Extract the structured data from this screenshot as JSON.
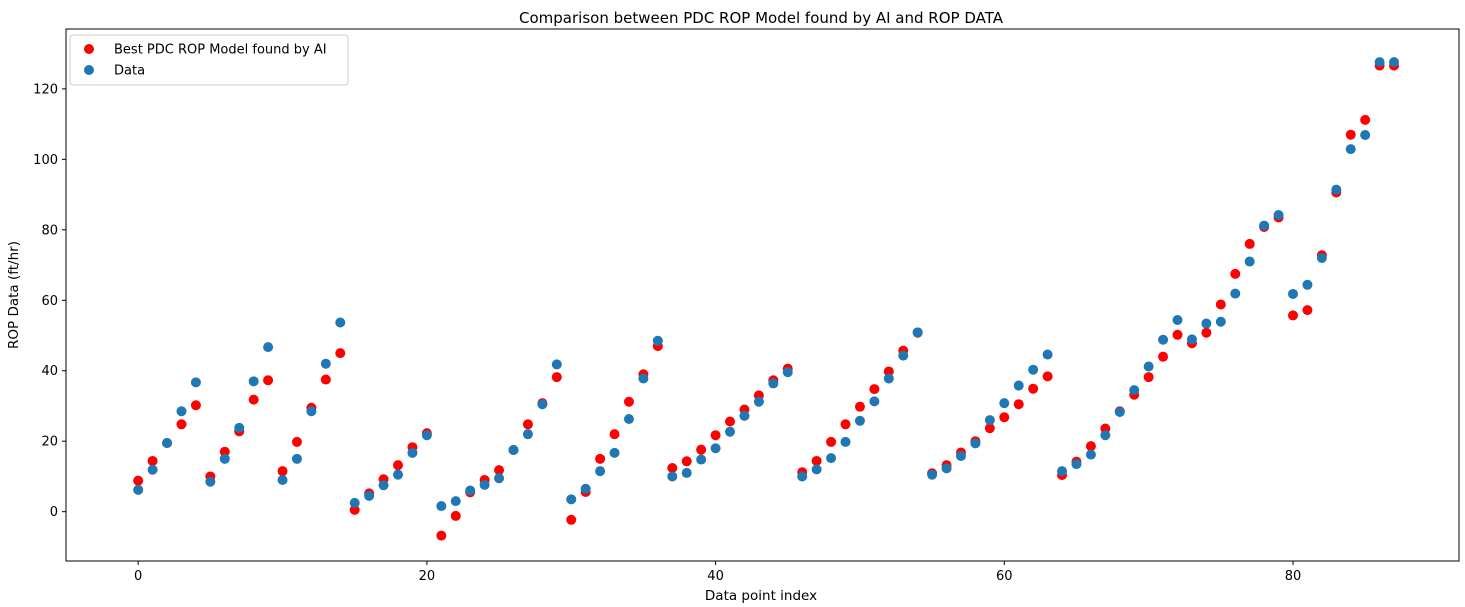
{
  "chart_data": {
    "type": "scatter",
    "title": "Comparison between PDC ROP Model found by AI and ROP DATA",
    "xlabel": "Data point index",
    "ylabel": "ROP Data (ft/hr)",
    "xlim": [
      -5,
      91.5
    ],
    "ylim": [
      -14,
      137
    ],
    "xticks": [
      0,
      20,
      40,
      60,
      80
    ],
    "yticks": [
      0,
      20,
      40,
      60,
      80,
      100,
      120
    ],
    "grid": false,
    "legend_position": "top-left",
    "series": [
      {
        "name": "Best PDC ROP Model found by AI",
        "color": "#ff0000",
        "x": [
          0,
          1,
          2,
          3,
          4,
          5,
          6,
          7,
          8,
          9,
          10,
          11,
          12,
          13,
          14,
          15,
          16,
          17,
          18,
          19,
          20,
          21,
          22,
          23,
          24,
          25,
          26,
          27,
          28,
          29,
          30,
          31,
          32,
          33,
          34,
          35,
          36,
          37,
          38,
          39,
          40,
          41,
          42,
          43,
          44,
          45,
          46,
          47,
          48,
          49,
          50,
          51,
          52,
          53,
          54,
          55,
          56,
          57,
          58,
          59,
          60,
          61,
          62,
          63,
          64,
          65,
          66,
          67,
          68,
          69,
          70,
          71,
          72,
          73,
          74,
          75,
          76,
          77,
          78,
          79,
          80,
          81,
          82,
          83,
          84,
          85,
          86,
          87
        ],
        "y": [
          8.8,
          14.4,
          19.5,
          24.8,
          30.2,
          10.0,
          17.0,
          22.8,
          31.8,
          37.3,
          11.5,
          19.8,
          29.5,
          37.5,
          45.0,
          0.5,
          5.2,
          9.2,
          13.2,
          18.3,
          22.3,
          -6.8,
          -1.2,
          5.5,
          9.0,
          11.8,
          17.5,
          24.8,
          30.8,
          38.2,
          -2.3,
          5.6,
          15.0,
          22.0,
          31.2,
          39.0,
          47.0,
          12.4,
          14.3,
          17.6,
          21.7,
          25.6,
          29.0,
          33.0,
          37.3,
          40.6,
          11.2,
          14.4,
          19.8,
          24.8,
          29.8,
          34.8,
          39.8,
          45.7,
          50.8,
          10.9,
          13.2,
          16.8,
          20.0,
          23.7,
          26.8,
          30.5,
          34.9,
          38.4,
          10.4,
          14.2,
          18.6,
          23.6,
          28.5,
          33.2,
          38.2,
          44.0,
          50.2,
          47.8,
          50.8,
          58.8,
          67.5,
          76.0,
          80.8,
          83.5,
          55.7,
          57.2,
          72.8,
          90.6,
          107.0,
          111.2,
          126.6,
          126.6
        ]
      },
      {
        "name": "Data",
        "color": "#1f77b4",
        "x": [
          0,
          1,
          2,
          3,
          4,
          5,
          6,
          7,
          8,
          9,
          10,
          11,
          12,
          13,
          14,
          15,
          16,
          17,
          18,
          19,
          20,
          21,
          22,
          23,
          24,
          25,
          26,
          27,
          28,
          29,
          30,
          31,
          32,
          33,
          34,
          35,
          36,
          37,
          38,
          39,
          40,
          41,
          42,
          43,
          44,
          45,
          46,
          47,
          48,
          49,
          50,
          51,
          52,
          53,
          54,
          55,
          56,
          57,
          58,
          59,
          60,
          61,
          62,
          63,
          64,
          65,
          66,
          67,
          68,
          69,
          70,
          71,
          72,
          73,
          74,
          75,
          76,
          77,
          78,
          79,
          80,
          81,
          82,
          83,
          84,
          85,
          86,
          87
        ],
        "y": [
          6.2,
          11.9,
          19.5,
          28.5,
          36.7,
          8.5,
          15.0,
          23.8,
          37.0,
          46.7,
          9.0,
          15.0,
          28.5,
          42.0,
          53.7,
          2.5,
          4.5,
          7.5,
          10.5,
          16.7,
          21.7,
          1.6,
          3.0,
          6.0,
          7.6,
          9.5,
          17.5,
          22.0,
          30.5,
          41.8,
          3.5,
          6.5,
          11.5,
          16.7,
          26.3,
          37.8,
          48.5,
          10.0,
          11.0,
          14.8,
          18.0,
          22.7,
          27.2,
          31.2,
          36.4,
          39.6,
          10.0,
          12.0,
          15.2,
          19.8,
          25.8,
          31.3,
          37.8,
          44.3,
          50.9,
          10.5,
          12.3,
          15.8,
          19.4,
          26.0,
          30.8,
          35.8,
          40.3,
          44.6,
          11.5,
          13.5,
          16.2,
          21.7,
          28.3,
          34.5,
          41.2,
          48.8,
          54.4,
          48.9,
          53.4,
          53.9,
          61.9,
          71.0,
          81.2,
          84.2,
          61.8,
          64.4,
          72.0,
          91.4,
          102.9,
          106.9,
          127.6,
          127.6
        ]
      }
    ]
  }
}
